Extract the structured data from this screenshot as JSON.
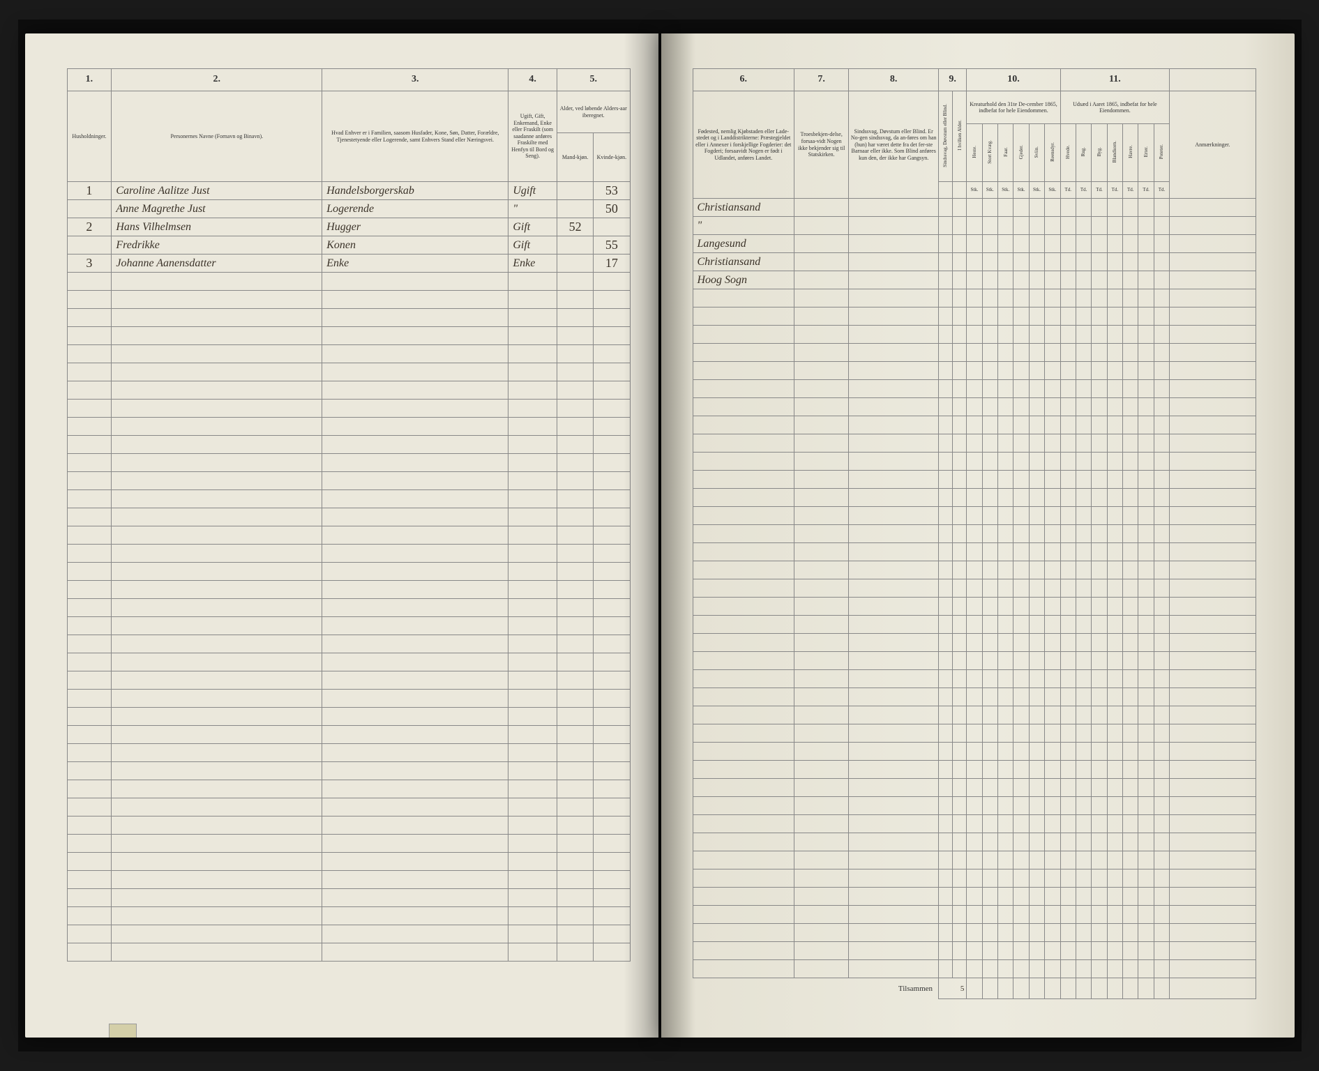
{
  "columns": {
    "left": {
      "c1": "1.",
      "c2": "2.",
      "c3": "3.",
      "c4": "4.",
      "c5": "5."
    },
    "right": {
      "c6": "6.",
      "c7": "7.",
      "c8": "8.",
      "c9": "9.",
      "c10": "10.",
      "c11": "11."
    }
  },
  "headers": {
    "h1": "Husholdninger.",
    "h2": "Personernes Navne (Fornavn og Binavn).",
    "h3": "Hvad Enhver er i Familien, saasom Husfader, Kone, Søn, Datter, Forældre, Tjenestetyende eller Logerende, samt Enhvers Stand eller Næringsvei.",
    "h4": "Ugift, Gift, Enkemand, Enke eller Fraskilt (som saadanne anføres Fraskilte med Henfyn til Bord og Seng).",
    "h5": "Alder, ved løbende Alders-aar iberegnet.",
    "h5a": "Mand-kjøn.",
    "h5b": "Kvinde-kjøn.",
    "h6": "Fødested, nemlig Kjøbstaden eller Lade-stedet og i Landdistrikterne: Præstegjeldet eller i Annexer i forskjellige Fogderier: det Fogderi; forsaavidt Nogen er født i Udlandet, anføres Landet.",
    "h7": "Troesbekjen-delse, forsaa-vidt Nogen ikke bekjender sig til Statskirken.",
    "h8": "Sindssvag, Døvstum eller Blind. Er No-gen sindssvag, da an-føres om han (hun) har været dette fra det fer-ste Barnaar eller ikke. Som Blind anføres kun den, der ikke har Gangsyn.",
    "h9a": "Sindssvag, Døvstum eller Blind.",
    "h9b": "I hvilken Alder.",
    "h10": "Kreaturhold den 31te De-cember 1865, indbefat for hele Eiendommen.",
    "h11": "Udsæd i Aaret 1865, indbefat for hele Eiendommen.",
    "h12": "Anmærkninger.",
    "sub10": [
      "Heste.",
      "Stort Kvæg.",
      "Faar.",
      "Gjeder.",
      "Sviin.",
      "Reensdyr."
    ],
    "sub11": [
      "Hvede.",
      "Rug.",
      "Byg.",
      "Blandkorn.",
      "Havre.",
      "Erter.",
      "Poteter."
    ],
    "unit": "Stk.",
    "unit2": "Td."
  },
  "rows": [
    {
      "num": "1",
      "name": "Caroline Aalitze Just",
      "role": "Handelsborgerskab",
      "status": "Ugift",
      "age_m": "",
      "age_f": "53",
      "place": "Christiansand"
    },
    {
      "num": "",
      "name": "Anne Magrethe Just",
      "role": "Logerende",
      "status": "\"",
      "age_m": "",
      "age_f": "50",
      "place": "\""
    },
    {
      "num": "2",
      "name": "Hans Vilhelmsen",
      "role": "Hugger",
      "status": "Gift",
      "age_m": "52",
      "age_f": "",
      "place": "Langesund"
    },
    {
      "num": "",
      "name": "Fredrikke",
      "role": "Konen",
      "status": "Gift",
      "age_m": "",
      "age_f": "55",
      "place": "Christiansand"
    },
    {
      "num": "3",
      "name": "Johanne Aanensdatter",
      "role": "Enke",
      "status": "Enke",
      "age_m": "",
      "age_f": "17",
      "place": "Hoog Sogn"
    }
  ],
  "total_label": "Tilsammen",
  "total_value": "5",
  "empty_rows": 38,
  "colors": {
    "paper": "#ebe8dc",
    "ink": "#3a3228",
    "rule": "#888",
    "bg": "#1a1a1a"
  }
}
